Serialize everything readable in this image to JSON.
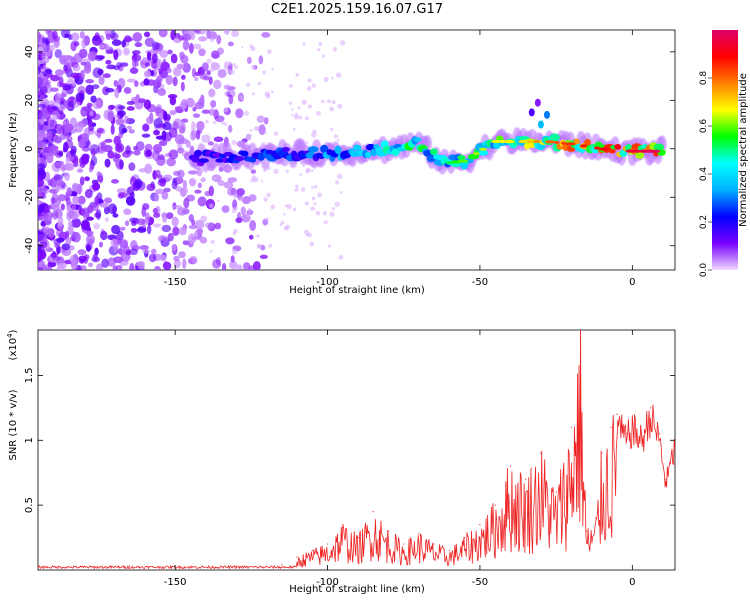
{
  "title": "C2E1.2025.159.16.07.G17",
  "chart_data": [
    {
      "type": "heatmap",
      "xlabel": "Height of straight line (km)",
      "ylabel": "Frequency (Hz)",
      "xlim": [
        -195,
        14
      ],
      "ylim": [
        -50,
        49
      ],
      "xticks": [
        -150,
        -100,
        -50,
        0
      ],
      "yticks": [
        -40,
        -20,
        0,
        20,
        40
      ],
      "colorbar": {
        "label": "Normalized spectral amplitude",
        "range": [
          0,
          1
        ],
        "ticks": [
          0.0,
          0.2,
          0.4,
          0.6,
          0.8
        ],
        "colormap": [
          "#f0d8ff",
          "#7a00ff",
          "#0000ff",
          "#00b0ff",
          "#00ffff",
          "#00ff00",
          "#ffff00",
          "#ff8000",
          "#ff0000",
          "#e0006a"
        ]
      },
      "ridge": [
        {
          "x": -145,
          "y": -4,
          "amp": 0.2
        },
        {
          "x": -130,
          "y": -3,
          "amp": 0.25
        },
        {
          "x": -110,
          "y": -2,
          "amp": 0.3
        },
        {
          "x": -100,
          "y": -2,
          "amp": 0.35
        },
        {
          "x": -90,
          "y": -1,
          "amp": 0.4
        },
        {
          "x": -80,
          "y": 0,
          "amp": 0.5
        },
        {
          "x": -70,
          "y": 2,
          "amp": 0.55
        },
        {
          "x": -62,
          "y": -6,
          "amp": 0.45
        },
        {
          "x": -55,
          "y": -5,
          "amp": 0.55
        },
        {
          "x": -45,
          "y": 3,
          "amp": 0.6
        },
        {
          "x": -35,
          "y": 3,
          "amp": 0.65
        },
        {
          "x": -28,
          "y": 3,
          "amp": 0.75
        },
        {
          "x": -20,
          "y": 2,
          "amp": 0.8
        },
        {
          "x": -10,
          "y": 0,
          "amp": 0.85
        },
        {
          "x": 0,
          "y": -1,
          "amp": 0.9
        },
        {
          "x": 10,
          "y": -1,
          "amp": 0.95
        }
      ]
    },
    {
      "type": "line",
      "xlabel": "Height of straight line (km)",
      "ylabel": "SNR (10 * v/v)",
      "yscale_label": "(x10",
      "yscale_exp": "4",
      "xlim": [
        -195,
        14
      ],
      "ylim": [
        0,
        1.85
      ],
      "xticks": [
        -150,
        -100,
        -50,
        0
      ],
      "yticks": [
        0.5,
        1.0,
        1.5
      ],
      "series_color": "#ee2222",
      "series": [
        {
          "points": [
            [
              -195,
              0.02
            ],
            [
              -180,
              0.02
            ],
            [
              -165,
              0.03
            ],
            [
              -150,
              0.02
            ],
            [
              -130,
              0.03
            ],
            [
              -115,
              0.04
            ],
            [
              -110,
              0.1
            ],
            [
              -105,
              0.15
            ],
            [
              -100,
              0.2
            ],
            [
              -95,
              0.35
            ],
            [
              -90,
              0.25
            ],
            [
              -85,
              0.45
            ],
            [
              -80,
              0.3
            ],
            [
              -75,
              0.2
            ],
            [
              -70,
              0.28
            ],
            [
              -65,
              0.2
            ],
            [
              -60,
              0.15
            ],
            [
              -55,
              0.25
            ],
            [
              -50,
              0.35
            ],
            [
              -45,
              0.5
            ],
            [
              -40,
              0.8
            ],
            [
              -35,
              0.7
            ],
            [
              -30,
              0.9
            ],
            [
              -25,
              0.6
            ],
            [
              -20,
              1.1
            ],
            [
              -17,
              1.85
            ],
            [
              -15,
              0.3
            ],
            [
              -12,
              0.4
            ],
            [
              -10,
              0.9
            ],
            [
              -7,
              1.1
            ],
            [
              -5,
              1.2
            ],
            [
              -2,
              1.05
            ],
            [
              0,
              1.15
            ],
            [
              3,
              1.05
            ],
            [
              6,
              1.25
            ],
            [
              9,
              1.05
            ],
            [
              11,
              0.7
            ],
            [
              14,
              1.0
            ]
          ]
        }
      ]
    }
  ]
}
